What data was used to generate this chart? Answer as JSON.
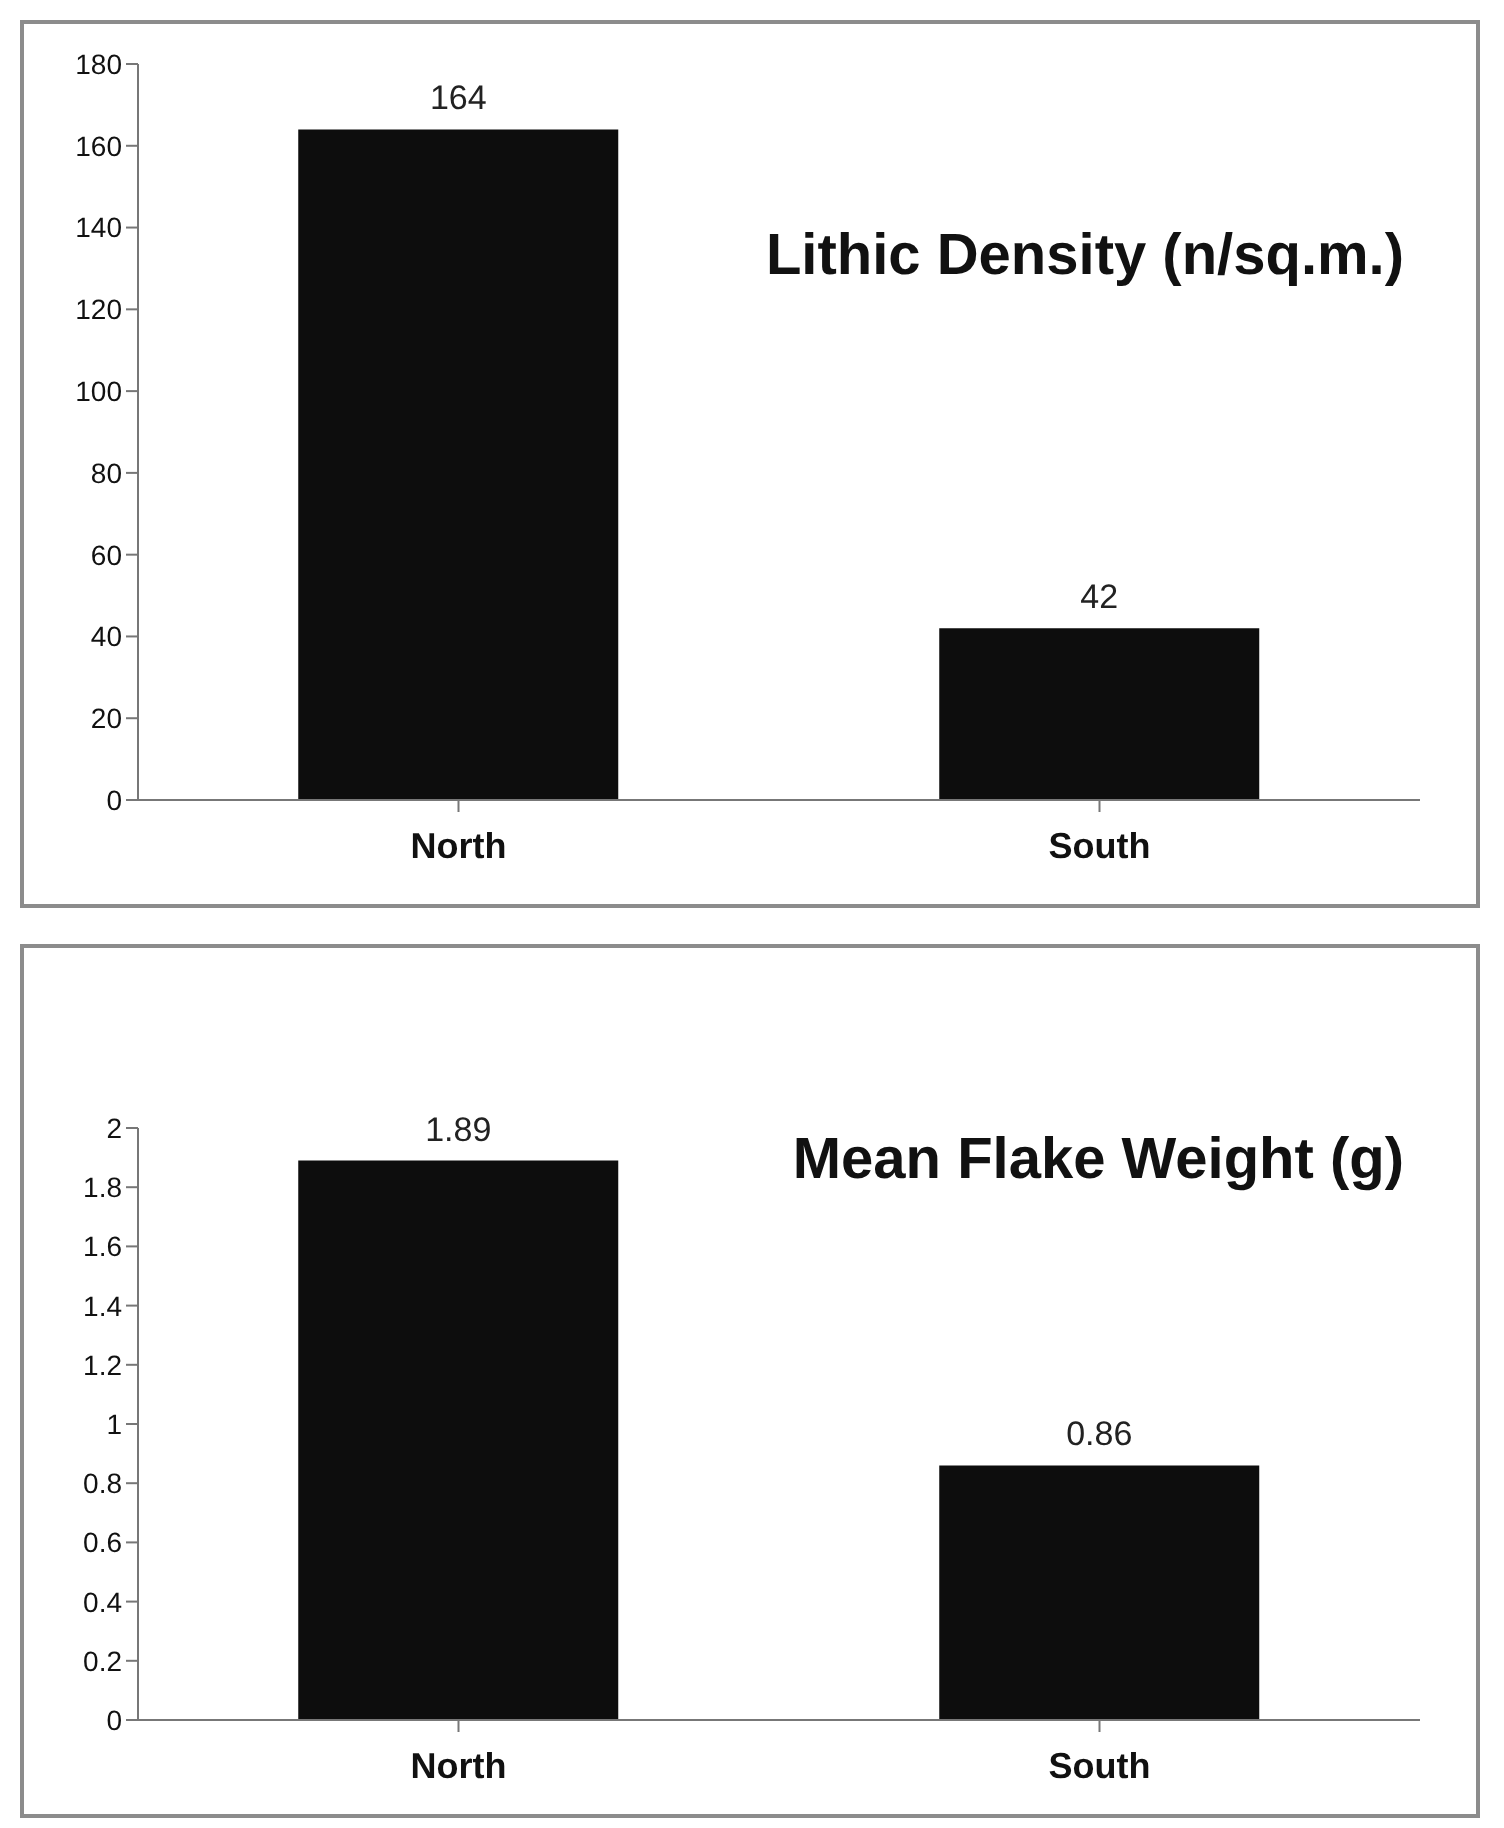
{
  "chart_data": [
    {
      "type": "bar",
      "title": "Lithic Density (n/sq.m.)",
      "categories": [
        "North",
        "South"
      ],
      "values": [
        164,
        42
      ],
      "color": "#0d0d0d",
      "ylim": [
        0,
        180
      ],
      "yticks": [
        0,
        20,
        40,
        60,
        80,
        100,
        120,
        140,
        160,
        180
      ],
      "data_labels": true,
      "grid": false,
      "legend": false
    },
    {
      "type": "bar",
      "title": "Mean Flake Weight (g)",
      "categories": [
        "North",
        "South"
      ],
      "values": [
        1.89,
        0.86
      ],
      "color": "#0d0d0d",
      "ylim": [
        0,
        2
      ],
      "yticks": [
        0,
        0.2,
        0.4,
        0.6,
        0.8,
        1,
        1.2,
        1.4,
        1.6,
        1.8,
        2
      ],
      "data_labels": true,
      "grid": false,
      "legend": false
    }
  ]
}
